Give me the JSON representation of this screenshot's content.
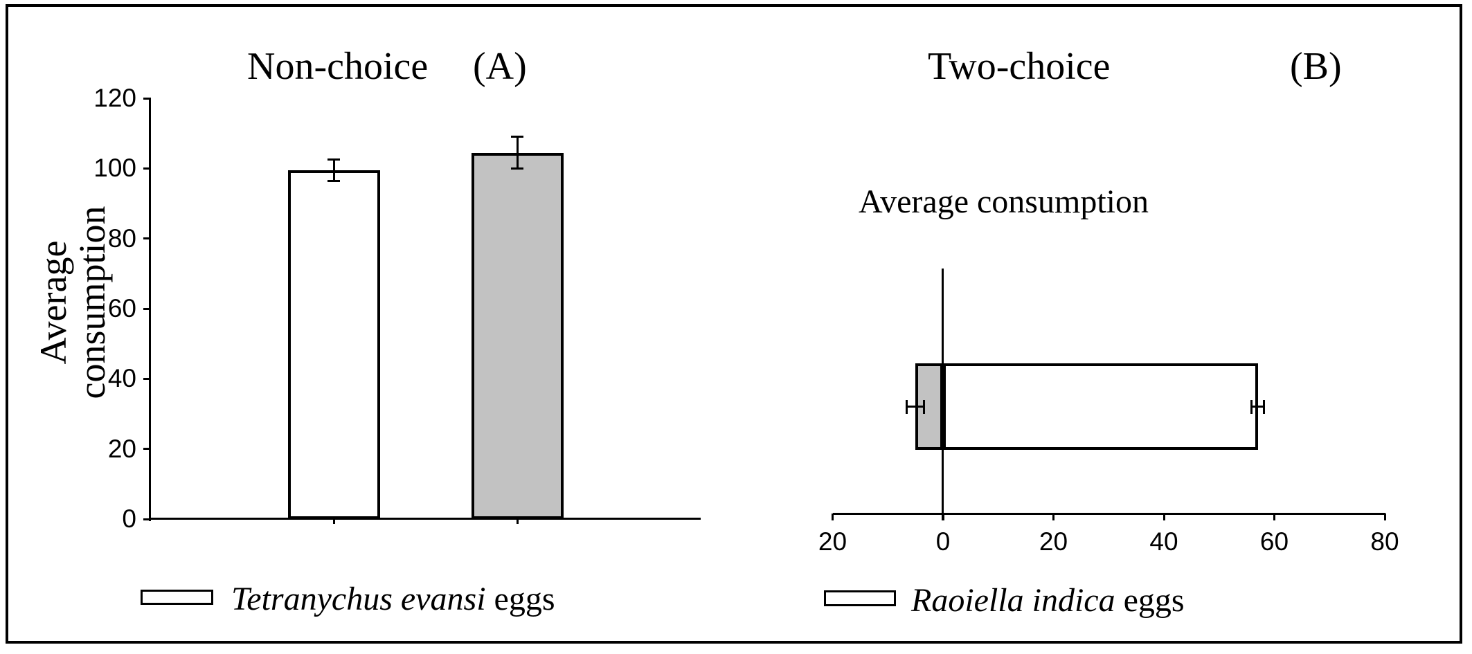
{
  "figure": {
    "background_color": "#ffffff",
    "frame_color": "#000000",
    "bar_gray": "#c2c2c2",
    "bar_white": "#ffffff"
  },
  "panels": {
    "A": {
      "title": "Non-choice",
      "panel_label": "(A)",
      "ylabel": "Average consumption"
    },
    "B": {
      "title": "Two-choice",
      "panel_label": "(B)",
      "annotation": "Average consumption"
    }
  },
  "legend": {
    "A": {
      "taxon": "Tetranychus evansi",
      "suffix": " eggs",
      "swatch_color": "#ffffff"
    },
    "B": {
      "taxon": "Raoiella indica",
      "suffix": " eggs",
      "swatch_color": "#c2c2c2"
    }
  },
  "chart_data": [
    {
      "panel": "A",
      "type": "bar",
      "orientation": "vertical",
      "title": "Non-choice",
      "ylabel": "Average consumption",
      "ylim": [
        0,
        120
      ],
      "yticks": [
        0,
        20,
        40,
        60,
        80,
        100,
        120
      ],
      "grid": false,
      "categories": [
        "Tetranychus evansi eggs",
        "Raoiella indica eggs"
      ],
      "values": [
        99.5,
        104.5
      ],
      "errors": [
        3,
        4.5
      ],
      "bar_colors": [
        "#ffffff",
        "#c2c2c2"
      ]
    },
    {
      "panel": "B",
      "type": "bar",
      "orientation": "horizontal",
      "title": "Two-choice",
      "annotation": "Average consumption",
      "xlim": [
        -25,
        80
      ],
      "xtick_values": [
        -20,
        0,
        20,
        40,
        60,
        80
      ],
      "xtick_labels": [
        "20",
        "0",
        "20",
        "40",
        "60",
        "80"
      ],
      "grid": false,
      "categories": [
        "Raoiella indica eggs",
        "Tetranychus evansi eggs"
      ],
      "values": [
        -5,
        57
      ],
      "errors": [
        1.6,
        1.1
      ],
      "bar_colors": [
        "#c2c2c2",
        "#ffffff"
      ]
    }
  ]
}
